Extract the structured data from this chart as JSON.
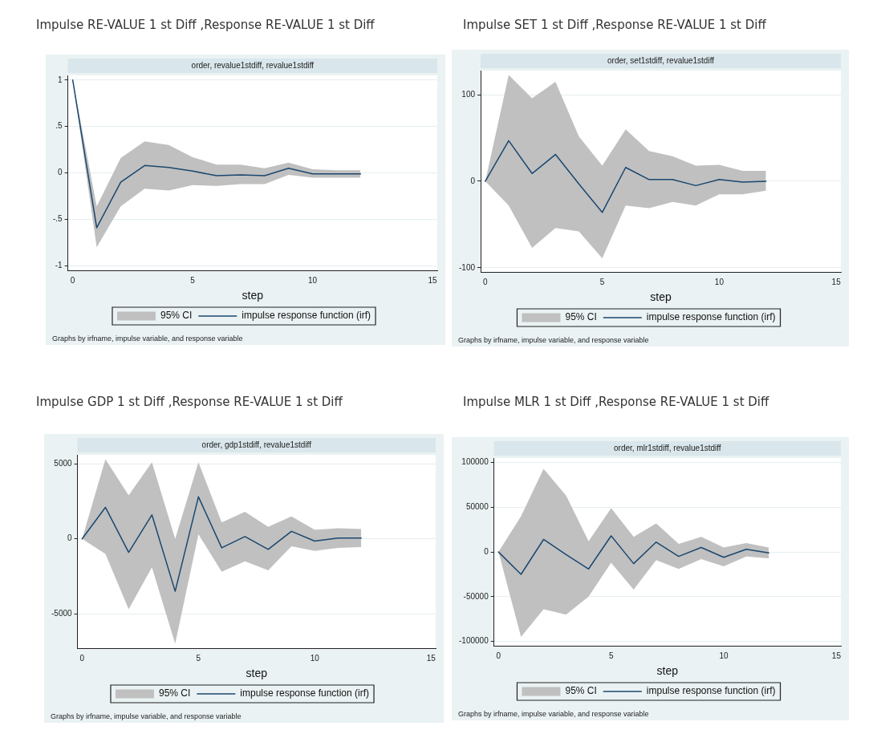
{
  "chart_data": [
    {
      "type": "line",
      "title": "Impulse RE-VALUE 1 st Diff ,Response RE-VALUE 1 st Diff",
      "subtitle": "order, revalue1stdiff, revalue1stdiff",
      "xlabel": "step",
      "annotations": [
        "Graphs by irfname, impulse variable, and response variable"
      ],
      "x": [
        0,
        1,
        2,
        3,
        4,
        5,
        6,
        7,
        8,
        9,
        10,
        11,
        12
      ],
      "series": [
        {
          "name": "95% CI",
          "type": "area",
          "color": "#c0c0c0",
          "values": [
            null,
            null,
            null,
            null,
            null,
            null,
            null,
            null,
            null,
            null,
            null,
            null,
            null
          ],
          "lower": [
            1,
            -0.8,
            -0.36,
            -0.17,
            -0.19,
            -0.13,
            -0.14,
            -0.12,
            -0.12,
            -0.02,
            -0.05,
            -0.05,
            -0.05
          ],
          "upper": [
            1,
            -0.36,
            0.16,
            0.34,
            0.3,
            0.17,
            0.09,
            0.09,
            0.05,
            0.11,
            0.04,
            0.03,
            0.03
          ]
        },
        {
          "name": "impulse response function (irf)",
          "type": "line",
          "color": "#1a476f",
          "values": [
            1,
            -0.59,
            -0.1,
            0.08,
            0.06,
            0.02,
            -0.03,
            -0.02,
            -0.03,
            0.05,
            -0.01,
            -0.01,
            -0.01
          ]
        }
      ],
      "xlim": [
        -0.2,
        15.2
      ],
      "xticks": [
        0,
        5,
        10,
        15
      ],
      "ylim": [
        -1.05,
        1.05
      ],
      "yticks": [
        1,
        {
          "value": 0.5,
          "label": ".5"
        },
        0,
        {
          "value": -0.5,
          "label": "-.5"
        },
        -1
      ],
      "grid": "y",
      "legend": "bottom",
      "marker": "none",
      "line_style": "solid"
    },
    {
      "type": "line",
      "title": "Impulse SET 1 st Diff ,Response RE-VALUE 1 st Diff",
      "subtitle": "order, set1stdiff, revalue1stdiff",
      "xlabel": "step",
      "annotations": [
        "Graphs by irfname, impulse variable, and response variable"
      ],
      "x": [
        0,
        1,
        2,
        3,
        4,
        5,
        6,
        7,
        8,
        9,
        10,
        11,
        12
      ],
      "series": [
        {
          "name": "95% CI",
          "type": "area",
          "color": "#c0c0c0",
          "values": [
            null,
            null,
            null,
            null,
            null,
            null,
            null,
            null,
            null,
            null,
            null,
            null,
            null
          ],
          "lower": [
            0,
            -28,
            -77,
            -54,
            -58,
            -89,
            -28,
            -31,
            -24,
            -28,
            -15,
            -15,
            -11
          ],
          "upper": [
            0,
            123,
            96,
            115,
            52,
            18,
            60,
            35,
            29,
            18,
            19,
            12,
            12
          ]
        },
        {
          "name": "impulse response function (irf)",
          "type": "line",
          "color": "#1a476f",
          "values": [
            0,
            47,
            9,
            31,
            -3,
            -36,
            16,
            2,
            2,
            -5,
            2,
            -1,
            0
          ]
        }
      ],
      "xlim": [
        -0.2,
        15.2
      ],
      "xticks": [
        0,
        5,
        10,
        15
      ],
      "ylim": [
        -105,
        128
      ],
      "yticks": [
        100,
        0,
        -100
      ],
      "grid": "y",
      "legend": "bottom",
      "marker": "none",
      "line_style": "solid"
    },
    {
      "type": "line",
      "title": "Impulse GDP 1 st Diff ,Response RE-VALUE 1 st Diff",
      "subtitle": "order, gdp1stdiff, revalue1stdiff",
      "xlabel": "step",
      "annotations": [
        "Graphs by irfname, impulse variable, and response variable"
      ],
      "x": [
        0,
        1,
        2,
        3,
        4,
        5,
        6,
        7,
        8,
        9,
        10,
        11,
        12
      ],
      "series": [
        {
          "name": "95% CI",
          "type": "area",
          "color": "#c0c0c0",
          "values": [
            null,
            null,
            null,
            null,
            null,
            null,
            null,
            null,
            null,
            null,
            null,
            null,
            null
          ],
          "lower": [
            0,
            -1000,
            -4700,
            -1900,
            -7000,
            300,
            -2200,
            -1500,
            -2100,
            -500,
            -800,
            -600,
            -550
          ],
          "upper": [
            0,
            5300,
            2900,
            5100,
            0,
            5100,
            1100,
            1800,
            800,
            1500,
            600,
            700,
            650
          ]
        },
        {
          "name": "impulse response function (irf)",
          "type": "line",
          "color": "#1a476f",
          "values": [
            0,
            2100,
            -900,
            1600,
            -3500,
            2800,
            -600,
            150,
            -700,
            500,
            -150,
            50,
            50
          ]
        }
      ],
      "xlim": [
        -0.2,
        15.2
      ],
      "xticks": [
        0,
        5,
        10,
        15
      ],
      "ylim": [
        -7300,
        5600
      ],
      "yticks": [
        5000,
        0,
        -5000
      ],
      "grid": "y",
      "legend": "bottom",
      "marker": "none",
      "line_style": "solid"
    },
    {
      "type": "line",
      "title": "Impulse MLR 1 st Diff ,Response RE-VALUE 1 st Diff",
      "subtitle": "order, mlr1stdiff, revalue1stdiff",
      "xlabel": "step",
      "annotations": [
        "Graphs by irfname, impulse variable, and response variable"
      ],
      "x": [
        0,
        1,
        2,
        3,
        4,
        5,
        6,
        7,
        8,
        9,
        10,
        11,
        12
      ],
      "series": [
        {
          "name": "95% CI",
          "type": "area",
          "color": "#c0c0c0",
          "values": [
            null,
            null,
            null,
            null,
            null,
            null,
            null,
            null,
            null,
            null,
            null,
            null,
            null
          ],
          "lower": [
            0,
            -95000,
            -64000,
            -70000,
            -50000,
            -12000,
            -42000,
            -9000,
            -19000,
            -8000,
            -16000,
            -5000,
            -7000
          ],
          "upper": [
            0,
            40000,
            93000,
            63000,
            12000,
            49000,
            17000,
            32000,
            9000,
            17000,
            5000,
            10000,
            5000
          ]
        },
        {
          "name": "impulse response function (irf)",
          "type": "line",
          "color": "#1a476f",
          "values": [
            0,
            -25000,
            14000,
            -3000,
            -19000,
            18000,
            -13000,
            11000,
            -5000,
            5000,
            -6000,
            3000,
            -1000
          ]
        }
      ],
      "xlim": [
        -0.2,
        15.2
      ],
      "xticks": [
        0,
        5,
        10,
        15
      ],
      "ylim": [
        -105000,
        105000
      ],
      "yticks": [
        100000,
        50000,
        0,
        -50000,
        -100000
      ],
      "grid": "y",
      "legend": "bottom",
      "marker": "none",
      "line_style": "solid"
    }
  ]
}
